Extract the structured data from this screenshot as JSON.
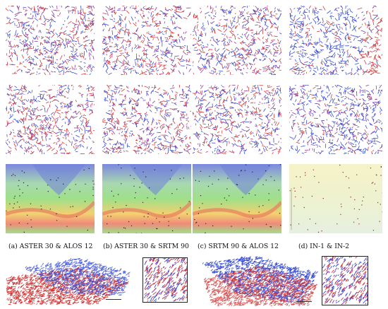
{
  "figure": {
    "captions": [
      "(a) ASTER 30 & ALOS 12",
      "(b) ASTER 30 & SRTM 90",
      "(c) SRTM 90 & ALOS 12",
      "(d) IN-1 & IN-2"
    ],
    "colors": {
      "stream_a": "#d23a3a",
      "stream_b": "#3a4fd6",
      "overlap": "#8a3a9a",
      "dem_high": "#7c88e0",
      "dem_mid": "#9fe08a",
      "dem_low": "#f4d070",
      "dem_valley": "#ef8a7a"
    }
  }
}
